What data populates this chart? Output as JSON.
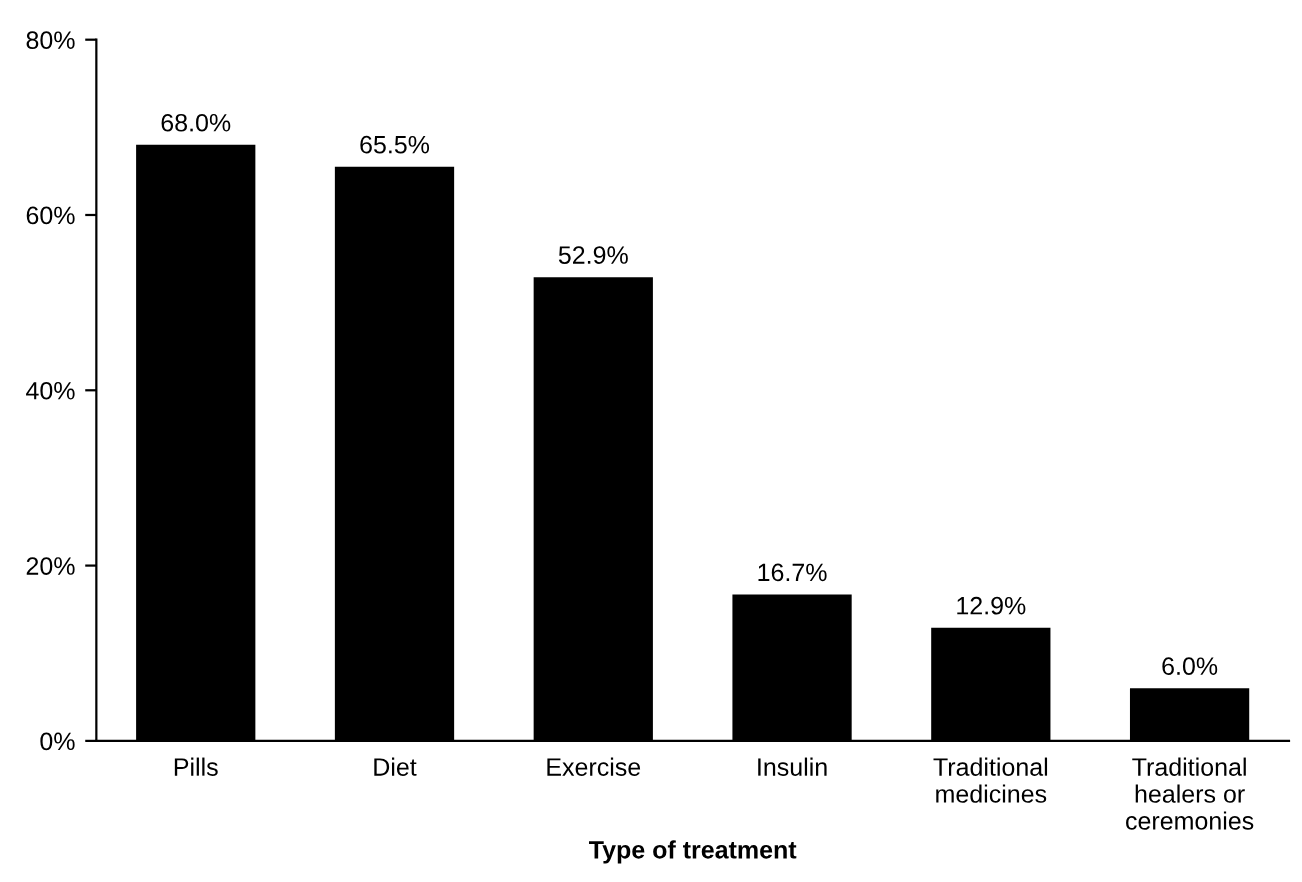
{
  "chart_data": {
    "type": "bar",
    "xlabel": "Type of treatment",
    "categories": [
      "Pills",
      "Diet",
      "Exercise",
      "Insulin",
      "Traditional\nmedicines",
      "Traditional\nhealers or\nceremonies"
    ],
    "values": [
      68.0,
      65.5,
      52.9,
      16.7,
      12.9,
      6.0
    ],
    "value_labels": [
      "68.0%",
      "65.5%",
      "52.9%",
      "16.7%",
      "12.9%",
      "6.0%"
    ],
    "color": "#000000",
    "ylim": [
      0,
      80
    ],
    "yticks": [
      {
        "value": 0,
        "label": "0%"
      },
      {
        "value": 20,
        "label": "20%"
      },
      {
        "value": 40,
        "label": "40%"
      },
      {
        "value": 60,
        "label": "60%"
      },
      {
        "value": 80,
        "label": "80%"
      }
    ],
    "grid": false,
    "legend": false
  }
}
